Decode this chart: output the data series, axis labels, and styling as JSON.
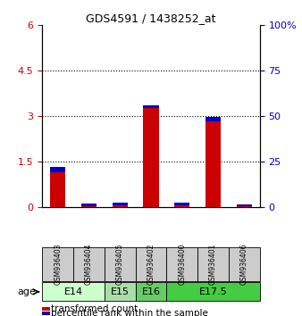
{
  "title": "GDS4591 / 1438252_at",
  "samples": [
    "GSM936403",
    "GSM936404",
    "GSM936405",
    "GSM936402",
    "GSM936400",
    "GSM936401",
    "GSM936406"
  ],
  "transformed_count": [
    1.15,
    0.04,
    0.07,
    3.28,
    0.05,
    2.82,
    0.02
  ],
  "percentile_rank_scaled": [
    0.18,
    0.07,
    0.07,
    0.07,
    0.09,
    0.17,
    0.07
  ],
  "left_ylim": [
    0,
    6
  ],
  "right_ylim": [
    0,
    100
  ],
  "left_yticks": [
    0,
    1.5,
    3,
    4.5,
    6
  ],
  "left_yticklabels": [
    "0",
    "1.5",
    "3",
    "4.5",
    "6"
  ],
  "right_yticks": [
    0,
    25,
    50,
    75,
    100
  ],
  "right_yticklabels": [
    "0",
    "25",
    "50",
    "75",
    "100%"
  ],
  "red_color": "#cc0000",
  "blue_color": "#0000cc",
  "bar_width": 0.5,
  "age_groups": [
    {
      "label": "E14",
      "start": 0,
      "end": 2,
      "color": "#ccffcc"
    },
    {
      "label": "E15",
      "start": 2,
      "end": 3,
      "color": "#aaddaa"
    },
    {
      "label": "E16",
      "start": 3,
      "end": 4,
      "color": "#66cc66"
    },
    {
      "label": "E17.5",
      "start": 4,
      "end": 7,
      "color": "#44cc44"
    }
  ],
  "sample_box_color": "#cccccc",
  "legend_items": [
    {
      "label": "transformed count",
      "color": "#cc0000"
    },
    {
      "label": "percentile rank within the sample",
      "color": "#0000cc"
    }
  ],
  "gridline_yticks": [
    1.5,
    3.0,
    4.5
  ]
}
